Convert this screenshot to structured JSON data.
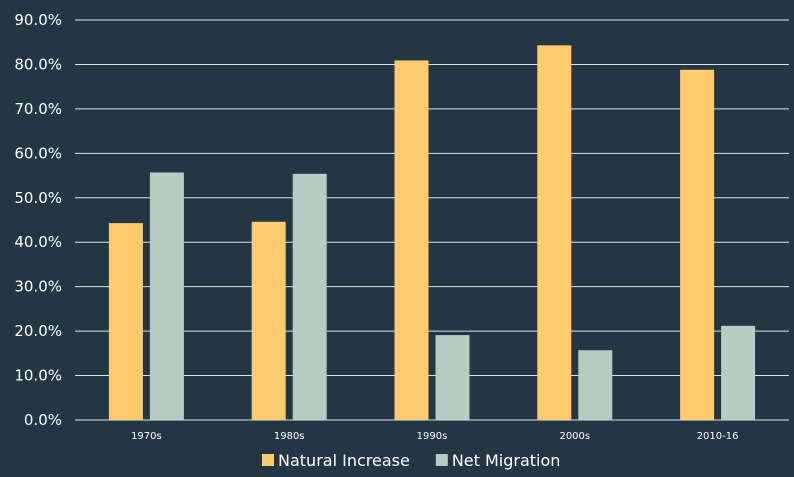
{
  "chart_data": {
    "type": "bar",
    "categories": [
      "1970s",
      "1980s",
      "1990s",
      "2000s",
      "2010-16"
    ],
    "series": [
      {
        "name": "Natural Increase",
        "color": "#ffca6e",
        "values": [
          44.3,
          44.6,
          80.9,
          84.3,
          78.8
        ]
      },
      {
        "name": "Net Migration",
        "color": "#b8cbc1",
        "values": [
          55.7,
          55.4,
          19.1,
          15.7,
          21.2
        ]
      }
    ],
    "yticks": [
      "0.0%",
      "10.0%",
      "20.0%",
      "30.0%",
      "40.0%",
      "50.0%",
      "60.0%",
      "70.0%",
      "80.0%",
      "90.0%"
    ],
    "ylim": [
      0,
      90
    ],
    "grid": true,
    "legend": "bottom",
    "background": "#233643"
  }
}
